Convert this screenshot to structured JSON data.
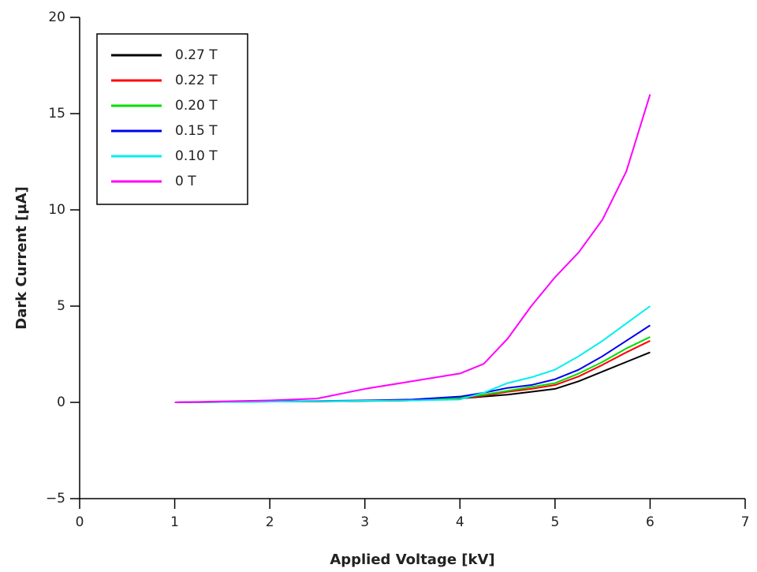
{
  "chart_data": {
    "type": "line",
    "xlabel": "Applied Voltage [kV]",
    "ylabel": "Dark Current [µA]",
    "x": [
      1,
      1.5,
      2,
      2.5,
      3,
      3.5,
      4,
      4.25,
      4.5,
      4.75,
      5,
      5.25,
      5.5,
      5.75,
      6
    ],
    "series": [
      {
        "name": "0.27 T",
        "color": "#000000",
        "values": [
          0,
          0.02,
          0.04,
          0.05,
          0.07,
          0.1,
          0.2,
          0.3,
          0.4,
          0.55,
          0.7,
          1.1,
          1.6,
          2.1,
          2.6
        ]
      },
      {
        "name": "0.22 T",
        "color": "#ff0000",
        "values": [
          0,
          0.02,
          0.04,
          0.05,
          0.08,
          0.1,
          0.2,
          0.35,
          0.55,
          0.7,
          0.9,
          1.35,
          1.95,
          2.6,
          3.2
        ]
      },
      {
        "name": "0.20 T",
        "color": "#00dd00",
        "values": [
          0,
          0.02,
          0.04,
          0.06,
          0.08,
          0.12,
          0.25,
          0.4,
          0.6,
          0.8,
          1.0,
          1.5,
          2.1,
          2.8,
          3.4
        ]
      },
      {
        "name": "0.15 T",
        "color": "#0000ee",
        "values": [
          0,
          0.03,
          0.05,
          0.07,
          0.1,
          0.15,
          0.3,
          0.5,
          0.75,
          0.9,
          1.2,
          1.7,
          2.4,
          3.2,
          4.0
        ]
      },
      {
        "name": "0.10 T",
        "color": "#00eeee",
        "values": [
          0,
          0.02,
          0.04,
          0.06,
          0.08,
          0.1,
          0.15,
          0.5,
          1.0,
          1.3,
          1.7,
          2.4,
          3.2,
          4.1,
          5.0
        ]
      },
      {
        "name": "0 T",
        "color": "#ff00ff",
        "values": [
          0,
          0.05,
          0.1,
          0.2,
          0.7,
          1.1,
          1.5,
          2.0,
          3.3,
          5.0,
          6.5,
          7.8,
          9.5,
          12,
          16
        ]
      }
    ],
    "xlim": [
      0,
      7
    ],
    "xticks": [
      0,
      1,
      2,
      3,
      4,
      5,
      6,
      7
    ],
    "ylim": [
      -5,
      20
    ],
    "yticks": [
      {
        "value": -5,
        "label": "−5"
      },
      0,
      5,
      10,
      15,
      20
    ],
    "legend": "upper left",
    "grid": false
  }
}
